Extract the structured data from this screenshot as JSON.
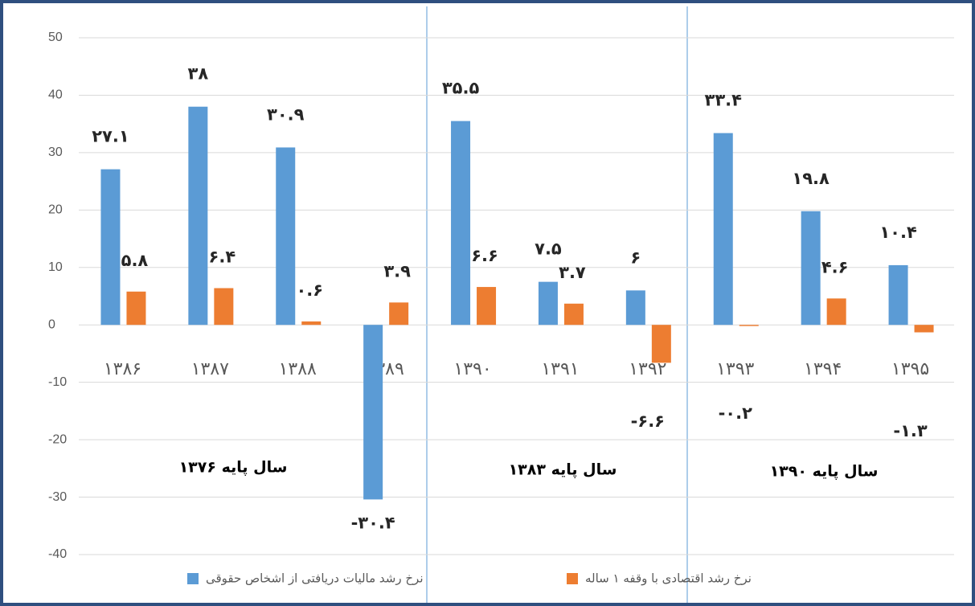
{
  "chart_data": {
    "type": "bar",
    "categories": [
      "۱۳۸۶",
      "۱۳۸۷",
      "۱۳۸۸",
      "۱۳۸۹",
      "۱۳۹۰",
      "۱۳۹۱",
      "۱۳۹۲",
      "۱۳۹۳",
      "۱۳۹۴",
      "۱۳۹۵"
    ],
    "series": [
      {
        "name": "نرخ رشد مالیات دریافتی از اشخاص حقوقی",
        "color": "#5b9bd5",
        "values": [
          27.1,
          38,
          30.9,
          -30.4,
          35.5,
          7.5,
          6,
          33.4,
          19.8,
          10.4
        ],
        "value_labels": [
          "۲۷.۱",
          "۳۸",
          "۳۰.۹",
          "-۳۰.۴",
          "۳۵.۵",
          "۷.۵",
          "۶",
          "۳۳.۴",
          "۱۹.۸",
          "۱۰.۴"
        ]
      },
      {
        "name": "نرخ رشد اقتصادی با وقفه ۱ ساله",
        "color": "#ed7d31",
        "values": [
          5.8,
          6.4,
          0.6,
          3.9,
          6.6,
          3.7,
          -6.6,
          -0.2,
          4.6,
          -1.3
        ],
        "value_labels": [
          "۵.۸",
          "۶.۴",
          "۰.۶",
          "۳.۹",
          "۶.۶",
          "۳.۷",
          "-۶.۶",
          "-۰.۲",
          "۴.۶",
          "-۱.۳"
        ]
      }
    ],
    "annotations": [
      "سال پایه ۱۳۷۶",
      "سال پایه ۱۳۸۳",
      "سال پایه ۱۳۹۰"
    ],
    "ylim": [
      -40,
      50
    ],
    "yticks": [
      -40,
      -30,
      -20,
      -10,
      0,
      10,
      20,
      30,
      40,
      50
    ],
    "grid": true
  }
}
